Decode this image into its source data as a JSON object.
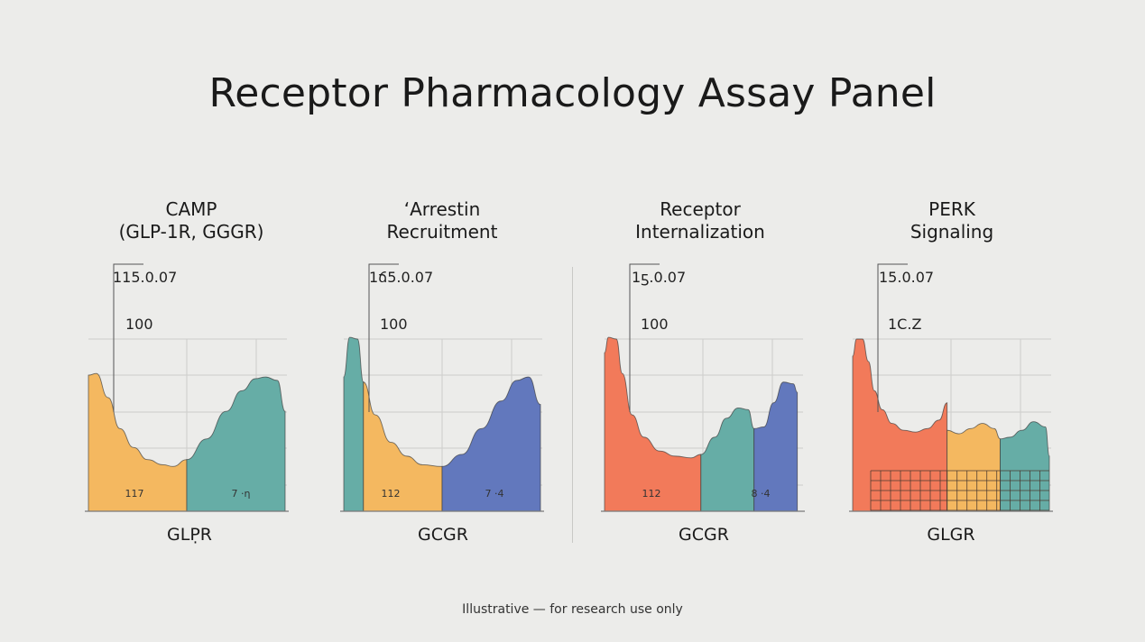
{
  "title": "Receptor Pharmacology Assay Panel",
  "footer": "Illustrative — for research use only",
  "colors": {
    "yellow": "#f4b860",
    "teal": "#66ada6",
    "blue": "#6278bd",
    "coral": "#f27a5a",
    "grid": "#cdcdcb",
    "axis": "#7a7a7a"
  },
  "chart_data": [
    {
      "type": "area",
      "title_lines": [
        "CAMP",
        "(GLP-1R, GGGR)"
      ],
      "top_label": "115.0.07",
      "mid_label": "100",
      "xlabel": "GLP̣R",
      "segment_labels": [
        "117",
        "7 ·η"
      ],
      "segments": [
        {
          "color": "yellow",
          "x": [
            0,
            4,
            10,
            16,
            23,
            30,
            38,
            43,
            50
          ],
          "y": [
            79,
            80,
            66,
            48,
            37,
            30,
            27,
            26,
            30
          ]
        },
        {
          "color": "teal",
          "x": [
            50,
            60,
            70,
            78,
            85,
            90,
            96,
            100
          ],
          "y": [
            30,
            42,
            58,
            70,
            77,
            78,
            76,
            58
          ]
        }
      ],
      "hatched_segments": []
    },
    {
      "type": "area",
      "title_lines": [
        "ʻArrestin",
        "Recruitment"
      ],
      "top_label": "1ճ5.0.07",
      "mid_label": "100",
      "xlabel": "GCGR",
      "segment_labels": [
        "112",
        "7 ·4"
      ],
      "segments": [
        {
          "color": "teal",
          "x": [
            0,
            3,
            7,
            10
          ],
          "y": [
            78,
            101,
            100,
            75
          ]
        },
        {
          "color": "yellow",
          "x": [
            10,
            16,
            24,
            32,
            40,
            50
          ],
          "y": [
            75,
            56,
            40,
            32,
            27,
            26
          ]
        },
        {
          "color": "blue",
          "x": [
            50,
            60,
            70,
            80,
            88,
            94,
            100
          ],
          "y": [
            26,
            33,
            48,
            64,
            76,
            78,
            62
          ]
        }
      ],
      "hatched_segments": []
    },
    {
      "type": "area",
      "title_lines": [
        "Receptor",
        "Internalization"
      ],
      "top_label": "1ƽ.0.07",
      "mid_label": "100",
      "xlabel": "GCGR",
      "segment_labels": [
        "112",
        "8 ·4"
      ],
      "segments": [
        {
          "color": "coral",
          "x": [
            0,
            2,
            6,
            9,
            14,
            20,
            28,
            36,
            44,
            49
          ],
          "y": [
            92,
            101,
            100,
            80,
            56,
            43,
            35,
            32,
            31,
            33
          ]
        },
        {
          "color": "teal",
          "x": [
            49,
            56,
            62,
            68,
            73,
            76
          ],
          "y": [
            33,
            43,
            54,
            60,
            59,
            48
          ]
        },
        {
          "color": "blue",
          "x": [
            76,
            81,
            86,
            91,
            96,
            98
          ],
          "y": [
            48,
            49,
            63,
            75,
            74,
            69
          ]
        }
      ],
      "hatched_segments": []
    },
    {
      "type": "area",
      "title_lines": [
        "PERK",
        "Signaling"
      ],
      "top_label": "15.0.07",
      "mid_label": "1C.Z",
      "xlabel": "GLGR",
      "segment_labels": [],
      "segments": [
        {
          "color": "coral",
          "x": [
            0,
            2,
            5,
            8,
            11,
            15,
            20,
            26,
            32,
            38,
            44,
            48
          ],
          "y": [
            90,
            100,
            100,
            87,
            70,
            59,
            51,
            47,
            46,
            48,
            53,
            63
          ]
        },
        {
          "color": "yellow",
          "x": [
            48,
            54,
            60,
            66,
            72,
            75
          ],
          "y": [
            47,
            45,
            48,
            51,
            48,
            42
          ]
        },
        {
          "color": "teal",
          "x": [
            75,
            80,
            86,
            92,
            98,
            100
          ],
          "y": [
            42,
            43,
            47,
            52,
            49,
            32
          ]
        }
      ],
      "hatched_segments": [
        0,
        1,
        2
      ]
    }
  ]
}
